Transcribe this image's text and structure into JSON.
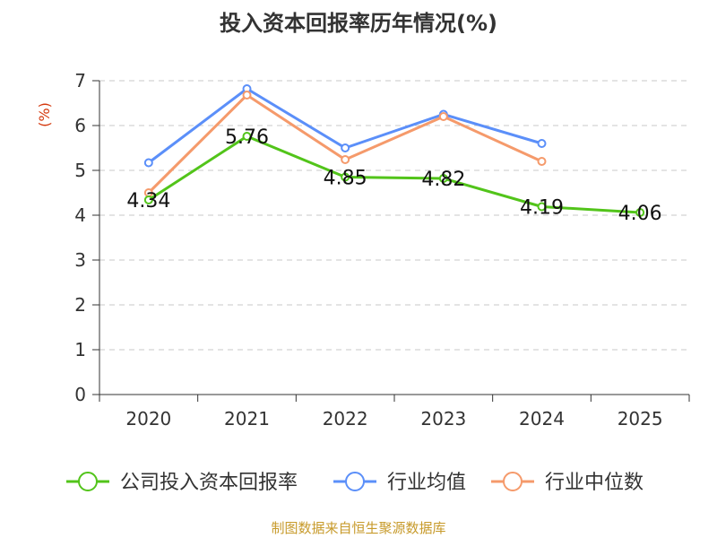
{
  "chart_data": {
    "type": "line",
    "title": "投入资本回报率历年情况(%)",
    "ylabel": "(%)",
    "xlabel": "",
    "ylim": [
      0,
      7
    ],
    "yticks": [
      0,
      1,
      2,
      3,
      4,
      5,
      6,
      7
    ],
    "categories": [
      "2020",
      "2021",
      "2022",
      "2023",
      "2024",
      "2025"
    ],
    "grid": true,
    "legend_position": "bottom",
    "series": [
      {
        "name": "公司投入资本回报率",
        "color": "#52c41a",
        "values": [
          4.34,
          5.76,
          4.85,
          4.82,
          4.19,
          4.06
        ],
        "labels": [
          "4.34",
          "5.76",
          "4.85",
          "4.82",
          "4.19",
          "4.06"
        ]
      },
      {
        "name": "行业均值",
        "color": "#5b8ff9",
        "values": [
          5.17,
          6.82,
          5.5,
          6.25,
          5.6,
          null
        ]
      },
      {
        "name": "行业中位数",
        "color": "#f59a6b",
        "values": [
          4.5,
          6.68,
          5.24,
          6.2,
          5.2,
          null
        ]
      }
    ]
  },
  "source": "制图数据来自恒生聚源数据库"
}
